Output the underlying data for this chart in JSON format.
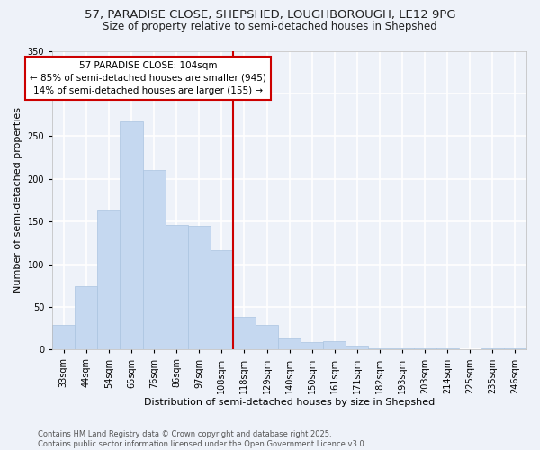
{
  "title1": "57, PARADISE CLOSE, SHEPSHED, LOUGHBOROUGH, LE12 9PG",
  "title2": "Size of property relative to semi-detached houses in Shepshed",
  "xlabel": "Distribution of semi-detached houses by size in Shepshed",
  "ylabel": "Number of semi-detached properties",
  "categories": [
    "33sqm",
    "44sqm",
    "54sqm",
    "65sqm",
    "76sqm",
    "86sqm",
    "97sqm",
    "108sqm",
    "118sqm",
    "129sqm",
    "140sqm",
    "150sqm",
    "161sqm",
    "171sqm",
    "182sqm",
    "193sqm",
    "203sqm",
    "214sqm",
    "225sqm",
    "235sqm",
    "246sqm"
  ],
  "values": [
    29,
    74,
    164,
    267,
    210,
    146,
    145,
    116,
    38,
    29,
    13,
    9,
    10,
    5,
    2,
    1,
    1,
    1,
    0,
    1,
    2
  ],
  "bar_color": "#c5d8f0",
  "bar_edge_color": "#aac4e0",
  "vline_color": "#cc0000",
  "vline_label": "57 PARADISE CLOSE: 104sqm",
  "annotation_smaller": "← 85% of semi-detached houses are smaller (945)",
  "annotation_larger": "14% of semi-detached houses are larger (155) →",
  "annotation_box_color": "#ffffff",
  "annotation_box_edge": "#cc0000",
  "background_color": "#eef2f9",
  "grid_color": "#ffffff",
  "ylim": [
    0,
    350
  ],
  "yticks": [
    0,
    50,
    100,
    150,
    200,
    250,
    300,
    350
  ],
  "footer1": "Contains HM Land Registry data © Crown copyright and database right 2025.",
  "footer2": "Contains public sector information licensed under the Open Government Licence v3.0.",
  "vline_pos": 7.5,
  "title1_fontsize": 9.5,
  "title2_fontsize": 8.5,
  "ylabel_fontsize": 8,
  "xlabel_fontsize": 8,
  "tick_fontsize": 7,
  "annotation_fontsize": 7.5,
  "footer_fontsize": 6
}
